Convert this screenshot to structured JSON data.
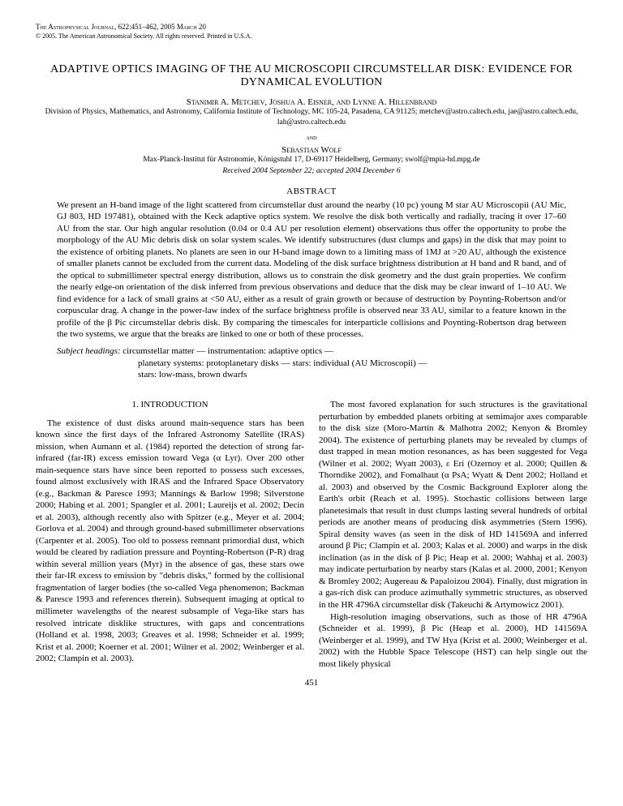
{
  "journal": {
    "line1": "The Astrophysical Journal, 622:451–462, 2005 March 20",
    "line2": "© 2005. The American Astronomical Society. All rights reserved. Printed in U.S.A."
  },
  "title": "ADAPTIVE OPTICS IMAGING OF THE AU MICROSCOPII CIRCUMSTELLAR DISK: EVIDENCE FOR DYNAMICAL EVOLUTION",
  "authors1": "Stanimir A. Metchev, Joshua A. Eisner, and Lynne A. Hillenbrand",
  "affil1": "Division of Physics, Mathematics, and Astronomy, California Institute of Technology, MC 105-24, Pasadena, CA 91125; metchev@astro.caltech.edu, jae@astro.caltech.edu, lah@astro.caltech.edu",
  "and": "and",
  "authors2": "Sebastian Wolf",
  "affil2": "Max-Planck-Institut für Astronomie, Königstuhl 17, D-69117 Heidelberg, Germany; swolf@mpia-hd.mpg.de",
  "received": "Received 2004 September 22; accepted 2004 December 6",
  "abstract_head": "ABSTRACT",
  "abstract": "We present an H-band image of the light scattered from circumstellar dust around the nearby (10 pc) young M star AU Microscopii (AU Mic, GJ 803, HD 197481), obtained with the Keck adaptive optics system. We resolve the disk both vertically and radially, tracing it over 17–60 AU from the star. Our high angular resolution (0.04 or 0.4 AU per resolution element) observations thus offer the opportunity to probe the morphology of the AU Mic debris disk on solar system scales. We identify substructures (dust clumps and gaps) in the disk that may point to the existence of orbiting planets. No planets are seen in our H-band image down to a limiting mass of 1MJ at >20 AU, although the existence of smaller planets cannot be excluded from the current data. Modeling of the disk surface brightness distribution at H band and R band, and of the optical to submillimeter spectral energy distribution, allows us to constrain the disk geometry and the dust grain properties. We confirm the nearly edge-on orientation of the disk inferred from previous observations and deduce that the disk may be clear inward of 1–10 AU. We find evidence for a lack of small grains at <50 AU, either as a result of grain growth or because of destruction by Poynting-Robertson and/or corpuscular drag. A change in the power-law index of the surface brightness profile is observed near 33 AU, similar to a feature known in the profile of the β Pic circumstellar debris disk. By comparing the timescales for interparticle collisions and Poynting-Robertson drag between the two systems, we argue that the breaks are linked to one or both of these processes.",
  "subject_label": "Subject headings:",
  "subject_line1": "circumstellar matter — instrumentation: adaptive optics —",
  "subject_line2": "planetary systems: protoplanetary disks — stars: individual (AU Microscopii) —",
  "subject_line3": "stars: low-mass, brown dwarfs",
  "section1": "1. INTRODUCTION",
  "col1_p1": "The existence of dust disks around main-sequence stars has been known since the first days of the Infrared Astronomy Satellite (IRAS) mission, when Aumann et al. (1984) reported the detection of strong far-infrared (far-IR) excess emission toward Vega (α Lyr). Over 200 other main-sequence stars have since been reported to possess such excesses, found almost exclusively with IRAS and the Infrared Space Observatory (e.g., Backman & Paresce 1993; Mannings & Barlow 1998; Silverstone 2000; Habing et al. 2001; Spangler et al. 2001; Laureijs et al. 2002; Decin et al. 2003), although recently also with Spitzer (e.g., Meyer et al. 2004; Gorlova et al. 2004) and through ground-based submillimeter observations (Carpenter et al. 2005). Too old to possess remnant primordial dust, which would be cleared by radiation pressure and Poynting-Robertson (P-R) drag within several million years (Myr) in the absence of gas, these stars owe their far-IR excess to emission by \"debris disks,\" formed by the collisional fragmentation of larger bodies (the so-called Vega phenomenon; Backman & Paresce 1993 and references therein). Subsequent imaging at optical to millimeter wavelengths of the nearest subsample of Vega-like stars has resolved intricate disklike structures, with gaps and concentrations (Holland et al. 1998, 2003; Greaves et al. 1998; Schneider et al. 1999; Krist et al. 2000; Koerner et al. 2001; Wilner et al. 2002; Weinberger et al. 2002; Clampin et al. 2003).",
  "col2_p1": "The most favored explanation for such structures is the gravitational perturbation by embedded planets orbiting at semimajor axes comparable to the disk size (Moro-Martín & Malhotra 2002; Kenyon & Bromley 2004). The existence of perturbing planets may be revealed by clumps of dust trapped in mean motion resonances, as has been suggested for Vega (Wilner et al. 2002; Wyatt 2003), ε Eri (Ozernoy et al. 2000; Quillen & Thorndike 2002), and Fomalhaut (α PsA; Wyatt & Dent 2002; Holland et al. 2003) and observed by the Cosmic Background Explorer along the Earth's orbit (Reach et al. 1995). Stochastic collisions between large planetesimals that result in dust clumps lasting several hundreds of orbital periods are another means of producing disk asymmetries (Stern 1996). Spiral density waves (as seen in the disk of HD 141569A and inferred around β Pic; Clampin et al. 2003; Kalas et al. 2000) and warps in the disk inclination (as in the disk of β Pic; Heap et al. 2000; Wahhaj et al. 2003) may indicate perturbation by nearby stars (Kalas et al. 2000, 2001; Kenyon & Bromley 2002; Augereau & Papaloizou 2004). Finally, dust migration in a gas-rich disk can produce azimuthally symmetric structures, as observed in the HR 4796A circumstellar disk (Takeuchi & Artymowicz 2001).",
  "col2_p2": "High-resolution imaging observations, such as those of HR 4796A (Schneider et al. 1999), β Pic (Heap et al. 2000), HD 141569A (Weinberger et al. 1999), and TW Hya (Krist et al. 2000; Weinberger et al. 2002) with the Hubble Space Telescope (HST) can help single out the most likely physical",
  "pagenum": "451"
}
